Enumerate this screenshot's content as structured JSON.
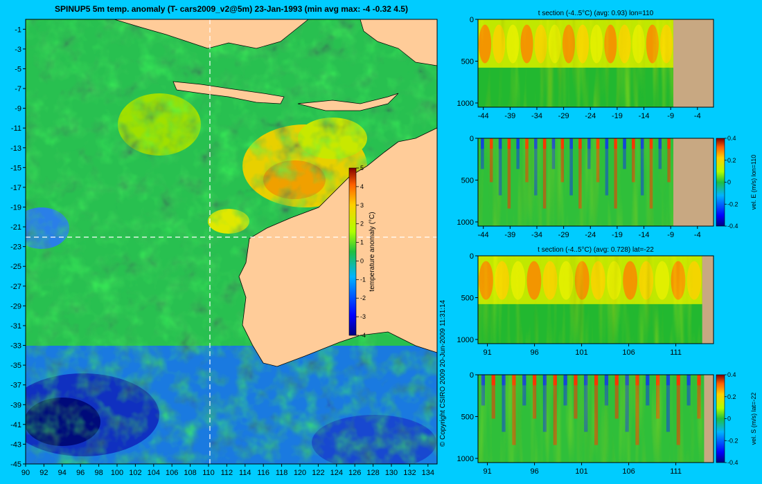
{
  "figure": {
    "title": "SPINUP5 5m temp. anomaly  (T- cars2009_v2@5m) 23-Jan-1993  (min avg max: -4 -0.32 4.5)",
    "copyright": "© Copyright CSIRO 2009   20-Jun-2009 11:31:14",
    "background_color": "#00ccff",
    "land_color": "#ffcc99",
    "section_land_color": "#c8a882"
  },
  "chart_data": [
    {
      "type": "heatmap",
      "name": "map",
      "title": "SPINUP5 5m temp. anomaly  (T- cars2009_v2@5m) 23-Jan-1993  (min avg max: -4 -0.32 4.5)",
      "x_ticks": [
        "90",
        "92",
        "94",
        "96",
        "98",
        "100",
        "102",
        "104",
        "106",
        "108",
        "110",
        "112",
        "114",
        "116",
        "118",
        "120",
        "122",
        "124",
        "126",
        "128",
        "130",
        "132",
        "134"
      ],
      "y_ticks": [
        "-1",
        "-3",
        "-5",
        "-7",
        "-9",
        "-11",
        "-13",
        "-15",
        "-17",
        "-19",
        "-21",
        "-23",
        "-25",
        "-27",
        "-29",
        "-31",
        "-33",
        "-35",
        "-37",
        "-39",
        "-41",
        "-43",
        "-45"
      ],
      "xlim": [
        90,
        135
      ],
      "ylim": [
        -45,
        0
      ],
      "crosshair": {
        "lon": 110,
        "lat": -22
      },
      "colorbar": {
        "label": "temperature anomaly (°C)",
        "range": [
          -4,
          5
        ],
        "ticks": [
          "5",
          "4",
          "3",
          "2",
          "1",
          "0",
          "-1",
          "-2",
          "-3",
          "-4"
        ]
      },
      "stats": {
        "min": -4,
        "avg": -0.32,
        "max": 4.5
      }
    },
    {
      "type": "heatmap",
      "name": "t-section-lon110",
      "title": "t section (-4..5°C) (avg: 0.93) lon=110",
      "x_ticks": [
        "-44",
        "-39",
        "-34",
        "-29",
        "-24",
        "-19",
        "-14",
        "-9",
        "-4"
      ],
      "y_ticks": [
        "0",
        "500",
        "1000"
      ],
      "xlim": [
        -45,
        -1
      ],
      "ylim": [
        1050,
        0
      ],
      "land_from": -8.5
    },
    {
      "type": "heatmap",
      "name": "velE-section-lon110",
      "title": "",
      "x_ticks": [
        "-44",
        "-39",
        "-34",
        "-29",
        "-24",
        "-19",
        "-14",
        "-9",
        "-4"
      ],
      "y_ticks": [
        "0",
        "500",
        "1000"
      ],
      "xlim": [
        -45,
        -1
      ],
      "ylim": [
        1050,
        0
      ],
      "land_from": -8.5,
      "colorbar": {
        "label": "vel. E (m/s) lon=110",
        "range": [
          -0.4,
          0.4
        ],
        "ticks": [
          "0.4",
          "0.2",
          "0",
          "-0.2",
          "-0.4"
        ]
      }
    },
    {
      "type": "heatmap",
      "name": "t-section-lat-22",
      "title": "t section (-4..5°C) (avg: 0.728) lat=-22",
      "x_ticks": [
        "91",
        "96",
        "101",
        "106",
        "111"
      ],
      "y_ticks": [
        "0",
        "500",
        "1000"
      ],
      "xlim": [
        90,
        115
      ],
      "ylim": [
        1050,
        0
      ],
      "land_from": 113.8
    },
    {
      "type": "heatmap",
      "name": "velS-section-lat-22",
      "title": "",
      "x_ticks": [
        "91",
        "96",
        "101",
        "106",
        "111"
      ],
      "y_ticks": [
        "0",
        "500",
        "1000"
      ],
      "xlim": [
        90,
        115
      ],
      "ylim": [
        1050,
        0
      ],
      "land_from": 114,
      "colorbar": {
        "label": "vel. S (m/s) lat=-22",
        "range": [
          -0.4,
          0.4
        ],
        "ticks": [
          "0.4",
          "0.2",
          "0",
          "-0.2",
          "-0.4"
        ]
      }
    }
  ]
}
